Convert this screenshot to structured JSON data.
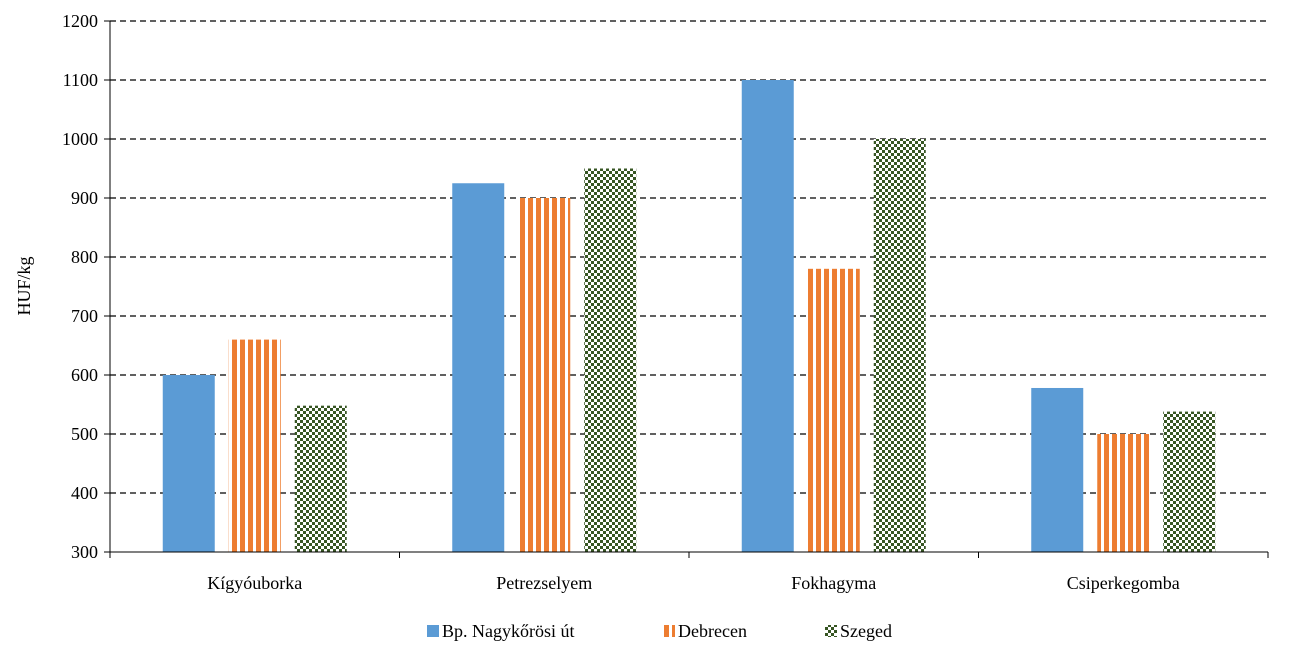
{
  "chart_data": {
    "type": "bar",
    "title": "",
    "xlabel": "",
    "ylabel": "HUF/kg",
    "ylim": [
      300,
      1200
    ],
    "yticks": [
      300,
      400,
      500,
      600,
      700,
      800,
      900,
      1000,
      1100,
      1200
    ],
    "grid": "horizontal-dashed",
    "legend": "bottom",
    "categories": [
      "Kígyóuborka",
      "Petrezselyem",
      "Fokhagyma",
      "Csiperkegomba"
    ],
    "series": [
      {
        "name": "Bp. Nagykőrösi út",
        "values": [
          600,
          925,
          1100,
          578
        ],
        "color": "#5b9bd5",
        "pattern": "solid"
      },
      {
        "name": "Debrecen",
        "values": [
          660,
          900,
          780,
          500
        ],
        "color": "#ed7d31",
        "pattern": "vertical-stripes"
      },
      {
        "name": "Szeged",
        "values": [
          548,
          950,
          1000,
          538
        ],
        "color": "#375623",
        "pattern": "checkerboard"
      }
    ]
  }
}
